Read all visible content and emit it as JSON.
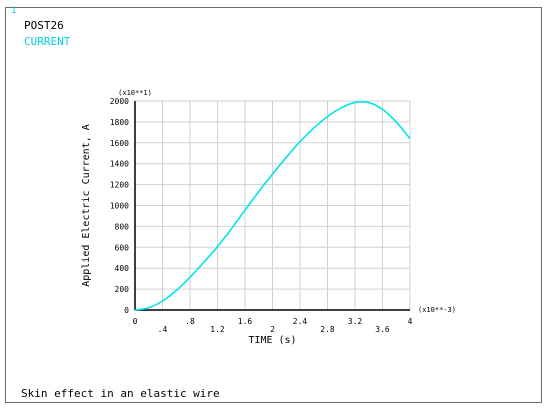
{
  "window_number": "1",
  "header": {
    "line1": "POST26",
    "line2": "CURRENT"
  },
  "footer_title": "Skin effect in an elastic wire",
  "colors": {
    "curve": "#00e5e5",
    "axes": "#000000",
    "grid": "#d0d0d0",
    "label_cyan": "#00d0e0"
  },
  "chart_data": {
    "type": "line",
    "title": "",
    "xlabel": "TIME (s)",
    "ylabel": "Applied Electric Current, A",
    "x_multiplier_label": "(x10**-3)",
    "y_multiplier_label": "(x10**1)",
    "xlim": [
      0,
      4
    ],
    "ylim": [
      0,
      2000
    ],
    "x_ticks": [
      0,
      0.4,
      0.8,
      1.2,
      1.6,
      2,
      2.4,
      2.8,
      3.2,
      3.6,
      4
    ],
    "x_tick_labels": [
      "0",
      ".4",
      ".8",
      "1.2",
      "1.6",
      "2",
      "2.4",
      "2.8",
      "3.2",
      "3.6",
      "4"
    ],
    "y_ticks": [
      0,
      200,
      400,
      600,
      800,
      1000,
      1200,
      1400,
      1600,
      1800,
      2000
    ],
    "y_tick_labels": [
      "0",
      "200",
      "400",
      "600",
      "800",
      "1000",
      "1200",
      "1400",
      "1600",
      "1800",
      "2000"
    ],
    "grid": true,
    "series": [
      {
        "name": "CURRENT",
        "x": [
          0,
          0.2,
          0.4,
          0.6,
          0.8,
          1.0,
          1.2,
          1.4,
          1.6,
          1.8,
          2.0,
          2.2,
          2.4,
          2.6,
          2.8,
          3.0,
          3.2,
          3.4,
          3.6,
          3.8,
          4.0
        ],
        "y": [
          0,
          22,
          86,
          187,
          313,
          456,
          607,
          775,
          955,
          1133,
          1300,
          1460,
          1610,
          1740,
          1850,
          1935,
          1985,
          1985,
          1920,
          1800,
          1640
        ]
      }
    ]
  }
}
